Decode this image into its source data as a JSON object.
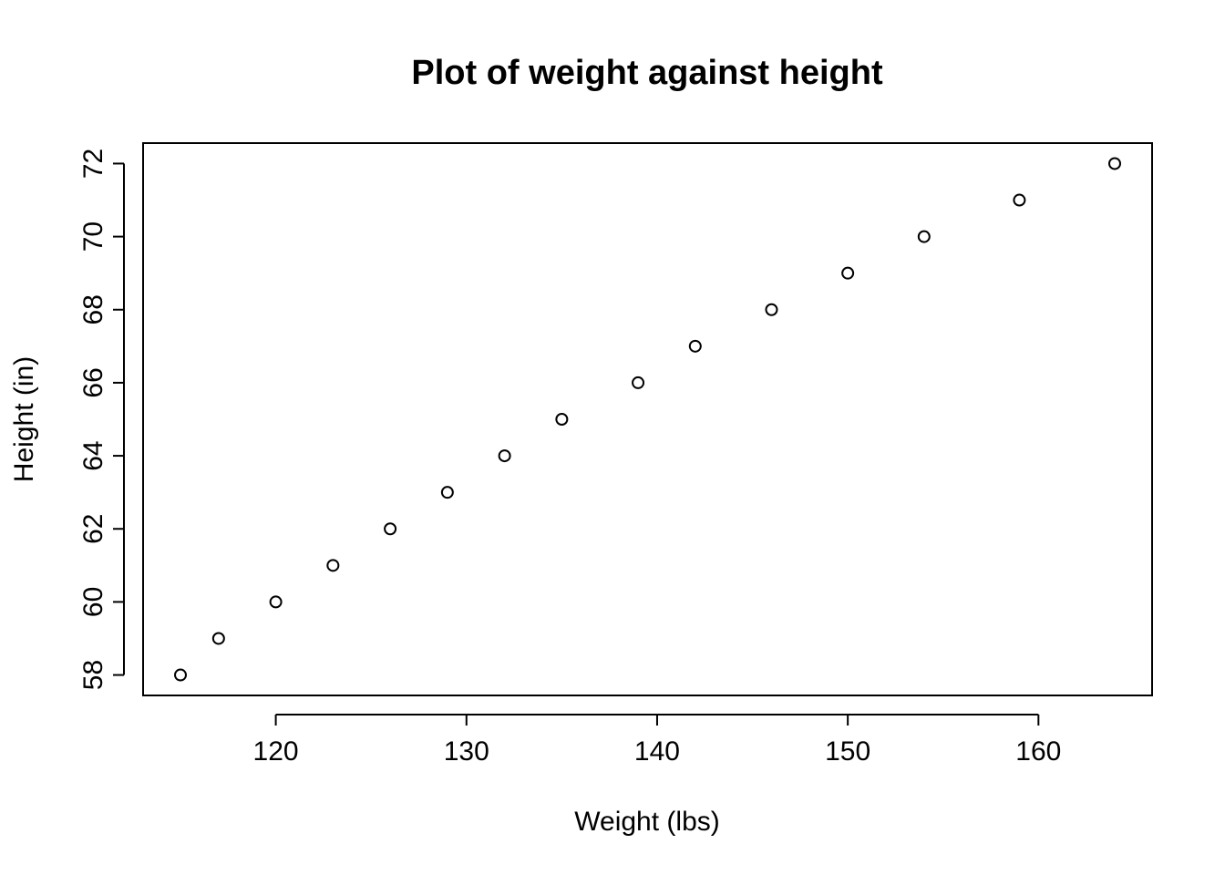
{
  "chart_data": {
    "type": "scatter",
    "title": "Plot of weight against height",
    "xlabel": "Weight (lbs)",
    "ylabel": "Height (in)",
    "x": [
      115,
      117,
      120,
      123,
      126,
      129,
      132,
      135,
      139,
      142,
      146,
      150,
      154,
      159,
      164
    ],
    "y": [
      58,
      59,
      60,
      61,
      62,
      63,
      64,
      65,
      66,
      67,
      68,
      69,
      70,
      71,
      72
    ],
    "xlim": [
      113.04,
      165.96
    ],
    "ylim": [
      57.44,
      72.56
    ],
    "xticks": [
      120,
      130,
      140,
      150,
      160
    ],
    "yticks": [
      58,
      60,
      62,
      64,
      66,
      68,
      70,
      72
    ],
    "marker": "open-circle",
    "grid": false,
    "legend": "none",
    "colors": {
      "points": "#000000",
      "axes": "#000000",
      "background": "#ffffff"
    }
  }
}
